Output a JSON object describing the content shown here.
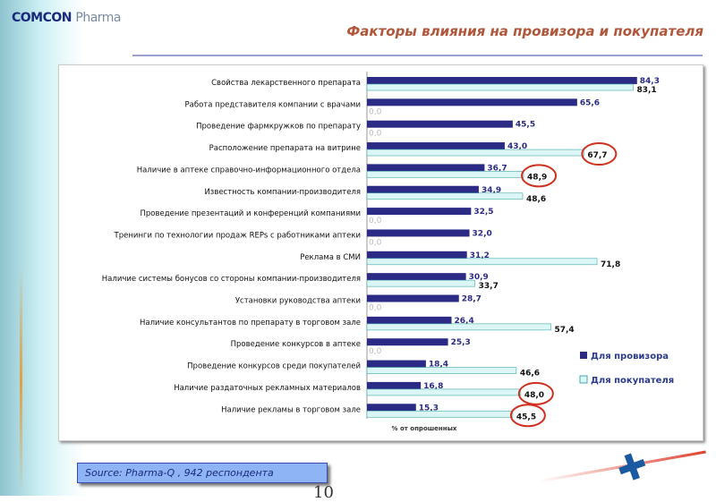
{
  "header": {
    "logo": "COMCON",
    "logo_sub": "Pharma",
    "title": "Факторы влияния на провизора и покупателя"
  },
  "chart_data": {
    "type": "bar",
    "orientation": "horizontal",
    "xlabel": "% от опрошенных",
    "xlim": [
      0,
      100
    ],
    "legend": "right",
    "categories": [
      "Свойства лекарственного препарата",
      "Работа представителя компании с врачами",
      "Проведение фармкружков по препарату",
      "Расположение препарата на витрине",
      "Наличие в аптеке справочно-информационного отдела",
      "Известность компании-производителя",
      "Проведение презентаций и конференций компаниями",
      "Тренинги по технологии продаж REPs с работниками аптеки",
      "Реклама в СМИ",
      "Наличие системы бонусов со стороны компании-производителя",
      "Установки руководства аптеки",
      "Наличие консультантов по препарату в торговом зале",
      "Проведение конкурсов в аптеке",
      "Проведение конкурсов среди покупателей",
      "Наличие раздаточных рекламных материалов",
      "Наличие рекламы в торговом зале"
    ],
    "series": [
      {
        "name": "Для провизора",
        "color": "#2b2b86",
        "values": [
          84.3,
          65.6,
          45.5,
          43.0,
          36.7,
          34.9,
          32.5,
          32.0,
          31.2,
          30.9,
          28.7,
          26.4,
          25.3,
          18.4,
          16.8,
          15.3
        ]
      },
      {
        "name": "Для покупателя",
        "color": "#dcf6f6",
        "values": [
          83.1,
          0.0,
          0.0,
          67.7,
          48.9,
          48.6,
          0.0,
          0.0,
          71.8,
          33.7,
          0.0,
          57.4,
          0.0,
          46.6,
          48.0,
          45.5
        ]
      }
    ],
    "highlighted": [
      3,
      4,
      14,
      15
    ]
  },
  "footer": {
    "source": "Source: Pharma-Q , 942 респондента",
    "page": "10"
  }
}
